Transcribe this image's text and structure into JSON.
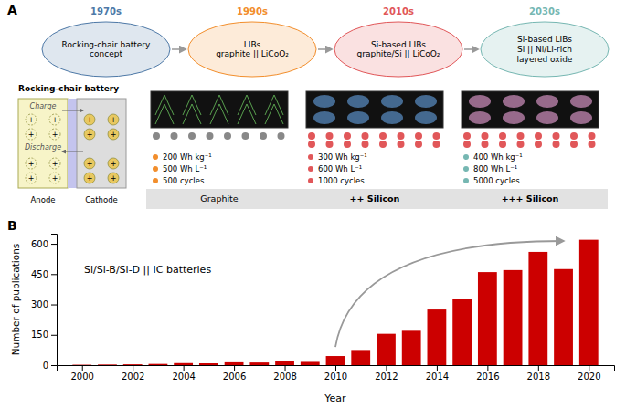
{
  "chart_data": [
    {
      "type": "diagram",
      "title": "A",
      "annotations": [
        "1970s",
        "1990s",
        "2010s",
        "2030s",
        "Rocking-chair battery\nconcept",
        "LIBs\ngraphite || LiCoO₂",
        "Si-based LIBs\ngraphite/Si || LiCoO₂",
        "Si-based LIBs\nSi || Ni/Li-rich\nlayered oxide",
        "Rocking-chair battery",
        "Charge",
        "Discharge",
        "Anode",
        "Cathode",
        "+",
        "Graphite",
        "++ Silicon",
        "+++ Silicon",
        "200 Wh kg⁻¹",
        "500 Wh L⁻¹",
        "500 cycles",
        "300 Wh kg⁻¹",
        "600 Wh L⁻¹",
        "1000 cycles",
        "400 Wh kg⁻¹",
        "800 Wh L⁻¹",
        "5000 cycles"
      ]
    },
    {
      "type": "bar",
      "title": "B",
      "x": [
        2000,
        2001,
        2002,
        2003,
        2004,
        2005,
        2006,
        2007,
        2008,
        2009,
        2010,
        2011,
        2012,
        2013,
        2014,
        2015,
        2016,
        2017,
        2018,
        2019,
        2020
      ],
      "values": [
        2,
        3,
        4,
        6,
        10,
        9,
        14,
        13,
        18,
        16,
        45,
        75,
        155,
        170,
        275,
        325,
        460,
        470,
        560,
        475,
        620
      ],
      "color": "#cc0000",
      "xlabel": "Year",
      "ylabel": "Number of publications",
      "annotations": [
        "Si/Si-B/Si-D || IC batteries"
      ],
      "xlim": [
        1999,
        2021
      ],
      "xticks": [
        2000,
        2002,
        2004,
        2006,
        2008,
        2010,
        2012,
        2014,
        2016,
        2018,
        2020
      ],
      "ylim": [
        0,
        650
      ],
      "yticks": [
        0,
        150,
        300,
        450,
        600
      ],
      "grid": false
    }
  ]
}
